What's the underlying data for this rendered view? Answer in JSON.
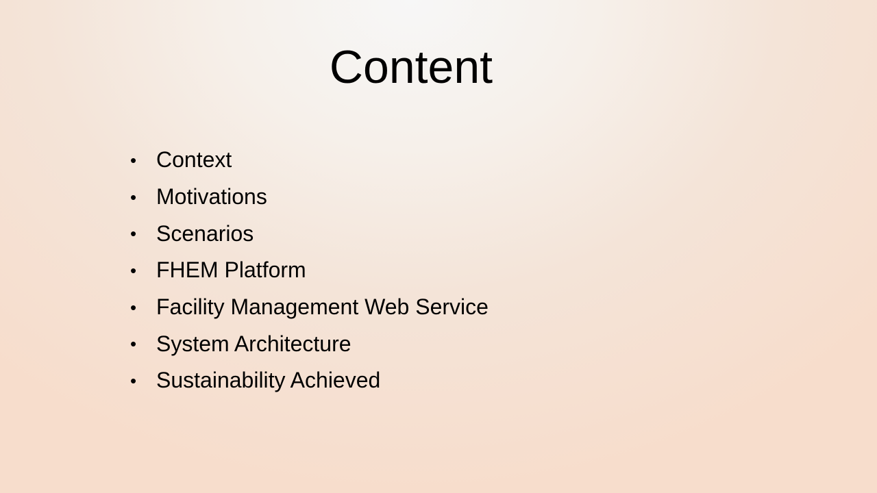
{
  "slide": {
    "title": "Content",
    "bullet_symbol": "•",
    "items": [
      "Context",
      "Motivations",
      "Scenarios",
      "FHEM Platform",
      "Facility Management Web Service",
      "System Architecture",
      "Sustainability Achieved"
    ]
  },
  "colors": {
    "text": "#000000",
    "background_center": "#f7f7f7",
    "background_edge": "#f7ddcc"
  }
}
